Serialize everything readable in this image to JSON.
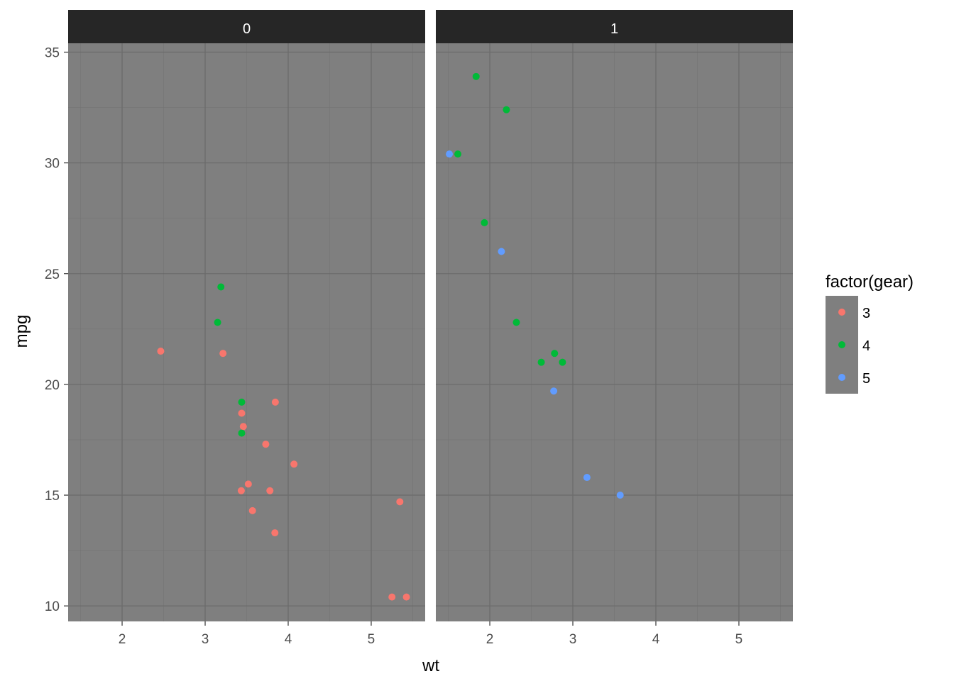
{
  "chart_data": {
    "type": "scatter",
    "xlabel": "wt",
    "ylabel": "mpg",
    "xlim": [
      1.35,
      5.65
    ],
    "ylim": [
      9.3,
      35.4
    ],
    "x_ticks": [
      2,
      3,
      4,
      5
    ],
    "y_ticks": [
      10,
      15,
      20,
      25,
      30,
      35
    ],
    "grid": true,
    "legend": {
      "title": "factor(gear)",
      "placement": "right",
      "entries": [
        {
          "label": "3",
          "color": "#F8766D"
        },
        {
          "label": "4",
          "color": "#00BA38"
        },
        {
          "label": "5",
          "color": "#619CFF"
        }
      ]
    },
    "panels": [
      {
        "strip": "0",
        "points": [
          {
            "x": 3.215,
            "y": 21.4,
            "gear": "3"
          },
          {
            "x": 3.44,
            "y": 18.7,
            "gear": "3"
          },
          {
            "x": 3.46,
            "y": 18.1,
            "gear": "3"
          },
          {
            "x": 3.57,
            "y": 14.3,
            "gear": "3"
          },
          {
            "x": 3.19,
            "y": 24.4,
            "gear": "4"
          },
          {
            "x": 3.15,
            "y": 22.8,
            "gear": "4"
          },
          {
            "x": 3.44,
            "y": 19.2,
            "gear": "4"
          },
          {
            "x": 3.44,
            "y": 17.8,
            "gear": "4"
          },
          {
            "x": 4.07,
            "y": 16.4,
            "gear": "3"
          },
          {
            "x": 3.73,
            "y": 17.3,
            "gear": "3"
          },
          {
            "x": 3.78,
            "y": 15.2,
            "gear": "3"
          },
          {
            "x": 5.25,
            "y": 10.4,
            "gear": "3"
          },
          {
            "x": 5.424,
            "y": 10.4,
            "gear": "3"
          },
          {
            "x": 5.345,
            "y": 14.7,
            "gear": "3"
          },
          {
            "x": 2.465,
            "y": 21.5,
            "gear": "3"
          },
          {
            "x": 3.52,
            "y": 15.5,
            "gear": "3"
          },
          {
            "x": 3.435,
            "y": 15.2,
            "gear": "3"
          },
          {
            "x": 3.84,
            "y": 13.3,
            "gear": "3"
          },
          {
            "x": 3.845,
            "y": 19.2,
            "gear": "3"
          }
        ]
      },
      {
        "strip": "1",
        "points": [
          {
            "x": 2.62,
            "y": 21.0,
            "gear": "4"
          },
          {
            "x": 2.875,
            "y": 21.0,
            "gear": "4"
          },
          {
            "x": 2.32,
            "y": 22.8,
            "gear": "4"
          },
          {
            "x": 2.2,
            "y": 32.4,
            "gear": "4"
          },
          {
            "x": 1.615,
            "y": 30.4,
            "gear": "4"
          },
          {
            "x": 1.835,
            "y": 33.9,
            "gear": "4"
          },
          {
            "x": 1.935,
            "y": 27.3,
            "gear": "4"
          },
          {
            "x": 2.14,
            "y": 26.0,
            "gear": "5"
          },
          {
            "x": 1.513,
            "y": 30.4,
            "gear": "5"
          },
          {
            "x": 3.17,
            "y": 15.8,
            "gear": "5"
          },
          {
            "x": 2.77,
            "y": 19.7,
            "gear": "5"
          },
          {
            "x": 3.57,
            "y": 15.0,
            "gear": "5"
          },
          {
            "x": 2.78,
            "y": 21.4,
            "gear": "4"
          }
        ]
      }
    ]
  },
  "colors": {
    "panel_bg": "#7F7F7F",
    "grid_major": "#6B6B6B",
    "grid_minor": "#757575",
    "strip_bg": "#262626",
    "tick_text": "#4d4d4d"
  }
}
